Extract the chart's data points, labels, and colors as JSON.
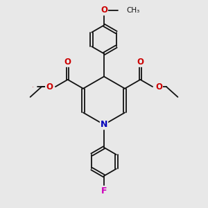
{
  "bg_color": "#e8e8e8",
  "bond_color": "#111111",
  "bond_lw": 1.3,
  "dbl_sep": 0.055,
  "atom_colors": {
    "O": "#cc0000",
    "N": "#0000bb",
    "F": "#cc00bb",
    "C": "#111111"
  },
  "figsize": [
    3.0,
    3.0
  ],
  "dpi": 100,
  "xlim": [
    -3.8,
    3.8
  ],
  "ylim": [
    -4.5,
    4.5
  ]
}
